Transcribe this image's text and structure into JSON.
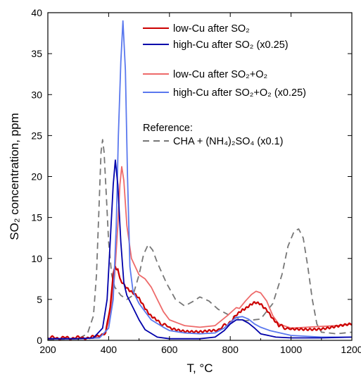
{
  "chart_data": {
    "type": "line",
    "xlabel": "T, °C",
    "ylabel": "SO₂ concentration, ppm",
    "xlim": [
      200,
      1200
    ],
    "ylim": [
      0,
      40
    ],
    "xticks": [
      200,
      400,
      600,
      800,
      1000,
      1200
    ],
    "yticks": [
      0,
      5,
      10,
      15,
      20,
      25,
      30,
      35,
      40
    ],
    "legend_position": "top-right",
    "legend_header": "Reference:",
    "series": [
      {
        "name": "low-Cu after SO₂",
        "color": "#cc0000",
        "style": "solid",
        "noisy": true,
        "points": [
          [
            200,
            0.3
          ],
          [
            300,
            0.3
          ],
          [
            360,
            0.4
          ],
          [
            390,
            1.0
          ],
          [
            405,
            4.0
          ],
          [
            415,
            8.0
          ],
          [
            422,
            9.0
          ],
          [
            430,
            8.5
          ],
          [
            440,
            7.2
          ],
          [
            460,
            6.5
          ],
          [
            480,
            5.8
          ],
          [
            500,
            5.0
          ],
          [
            520,
            4.0
          ],
          [
            540,
            3.0
          ],
          [
            560,
            2.3
          ],
          [
            600,
            1.6
          ],
          [
            650,
            1.2
          ],
          [
            700,
            1.0
          ],
          [
            750,
            1.1
          ],
          [
            790,
            2.0
          ],
          [
            820,
            3.0
          ],
          [
            840,
            3.8
          ],
          [
            860,
            4.2
          ],
          [
            880,
            4.5
          ],
          [
            900,
            4.5
          ],
          [
            920,
            3.8
          ],
          [
            940,
            2.5
          ],
          [
            960,
            1.8
          ],
          [
            1000,
            1.3
          ],
          [
            1050,
            1.4
          ],
          [
            1100,
            1.5
          ],
          [
            1150,
            1.7
          ],
          [
            1200,
            1.9
          ]
        ]
      },
      {
        "name": "high-Cu after SO₂ (x0.25)",
        "color": "#0000aa",
        "style": "solid",
        "points": [
          [
            200,
            0.2
          ],
          [
            300,
            0.2
          ],
          [
            350,
            0.3
          ],
          [
            380,
            1.5
          ],
          [
            395,
            5.0
          ],
          [
            405,
            12.0
          ],
          [
            415,
            19.0
          ],
          [
            422,
            22.0
          ],
          [
            430,
            19.0
          ],
          [
            440,
            12.0
          ],
          [
            450,
            7.0
          ],
          [
            460,
            5.5
          ],
          [
            480,
            4.0
          ],
          [
            500,
            2.5
          ],
          [
            520,
            1.3
          ],
          [
            560,
            0.4
          ],
          [
            600,
            0.2
          ],
          [
            700,
            0.2
          ],
          [
            750,
            0.4
          ],
          [
            780,
            1.2
          ],
          [
            800,
            2.0
          ],
          [
            820,
            2.5
          ],
          [
            840,
            2.5
          ],
          [
            860,
            2.1
          ],
          [
            880,
            1.5
          ],
          [
            900,
            0.8
          ],
          [
            950,
            0.4
          ],
          [
            1000,
            0.3
          ],
          [
            1100,
            0.3
          ],
          [
            1200,
            0.4
          ]
        ]
      },
      {
        "name": "low-Cu after SO₂+O₂",
        "color": "#ee6a6a",
        "style": "solid",
        "points": [
          [
            200,
            0.2
          ],
          [
            300,
            0.2
          ],
          [
            360,
            0.3
          ],
          [
            390,
            1.0
          ],
          [
            405,
            3.0
          ],
          [
            420,
            8.0
          ],
          [
            430,
            14.0
          ],
          [
            437,
            19.0
          ],
          [
            443,
            21.2
          ],
          [
            450,
            19.5
          ],
          [
            460,
            14.0
          ],
          [
            475,
            10.0
          ],
          [
            500,
            8.0
          ],
          [
            520,
            7.5
          ],
          [
            540,
            6.5
          ],
          [
            560,
            5.0
          ],
          [
            580,
            3.5
          ],
          [
            600,
            2.5
          ],
          [
            650,
            1.8
          ],
          [
            700,
            1.6
          ],
          [
            750,
            1.8
          ],
          [
            790,
            3.0
          ],
          [
            820,
            4.0
          ],
          [
            830,
            3.9
          ],
          [
            850,
            4.8
          ],
          [
            870,
            5.6
          ],
          [
            885,
            6.0
          ],
          [
            900,
            5.8
          ],
          [
            920,
            4.8
          ],
          [
            940,
            3.0
          ],
          [
            960,
            2.0
          ],
          [
            1000,
            1.5
          ],
          [
            1050,
            1.6
          ],
          [
            1100,
            1.7
          ],
          [
            1150,
            1.8
          ],
          [
            1200,
            2.0
          ]
        ]
      },
      {
        "name": "high-Cu after SO₂+O₂ (x0.25)",
        "color": "#5a78ee",
        "style": "solid",
        "points": [
          [
            200,
            0.2
          ],
          [
            300,
            0.2
          ],
          [
            370,
            0.3
          ],
          [
            400,
            1.5
          ],
          [
            415,
            5.0
          ],
          [
            425,
            14.0
          ],
          [
            432,
            25.0
          ],
          [
            440,
            34.0
          ],
          [
            447,
            39.0
          ],
          [
            455,
            33.0
          ],
          [
            462,
            20.0
          ],
          [
            470,
            9.0
          ],
          [
            480,
            6.0
          ],
          [
            500,
            4.5
          ],
          [
            520,
            3.5
          ],
          [
            540,
            2.5
          ],
          [
            580,
            1.6
          ],
          [
            600,
            1.2
          ],
          [
            650,
            0.9
          ],
          [
            700,
            0.8
          ],
          [
            750,
            0.9
          ],
          [
            780,
            1.5
          ],
          [
            800,
            2.2
          ],
          [
            820,
            2.8
          ],
          [
            840,
            2.9
          ],
          [
            860,
            2.6
          ],
          [
            880,
            2.0
          ],
          [
            900,
            1.6
          ],
          [
            930,
            1.2
          ],
          [
            1000,
            0.6
          ],
          [
            1100,
            0.4
          ],
          [
            1200,
            0.4
          ]
        ]
      },
      {
        "name": "CHA +  (NH₄)₂SO₄ (x0.1)",
        "color": "#777777",
        "style": "dashed",
        "points": [
          [
            200,
            0.1
          ],
          [
            300,
            0.2
          ],
          [
            330,
            0.8
          ],
          [
            350,
            3.0
          ],
          [
            360,
            8.0
          ],
          [
            368,
            16.0
          ],
          [
            375,
            23.0
          ],
          [
            380,
            24.5
          ],
          [
            385,
            23.0
          ],
          [
            392,
            18.0
          ],
          [
            400,
            12.0
          ],
          [
            410,
            8.0
          ],
          [
            420,
            6.5
          ],
          [
            440,
            5.5
          ],
          [
            460,
            5.0
          ],
          [
            480,
            5.5
          ],
          [
            500,
            8.0
          ],
          [
            515,
            10.5
          ],
          [
            530,
            11.7
          ],
          [
            545,
            11.0
          ],
          [
            560,
            9.5
          ],
          [
            590,
            7.0
          ],
          [
            620,
            5.0
          ],
          [
            650,
            4.2
          ],
          [
            680,
            4.8
          ],
          [
            700,
            5.3
          ],
          [
            730,
            4.8
          ],
          [
            760,
            3.8
          ],
          [
            800,
            3.0
          ],
          [
            850,
            2.4
          ],
          [
            900,
            2.6
          ],
          [
            940,
            4.5
          ],
          [
            970,
            8.0
          ],
          [
            990,
            11.5
          ],
          [
            1010,
            13.3
          ],
          [
            1025,
            13.6
          ],
          [
            1040,
            12.5
          ],
          [
            1055,
            9.0
          ],
          [
            1070,
            5.0
          ],
          [
            1085,
            2.0
          ],
          [
            1100,
            1.0
          ],
          [
            1150,
            0.8
          ],
          [
            1200,
            1.0
          ]
        ]
      }
    ]
  }
}
